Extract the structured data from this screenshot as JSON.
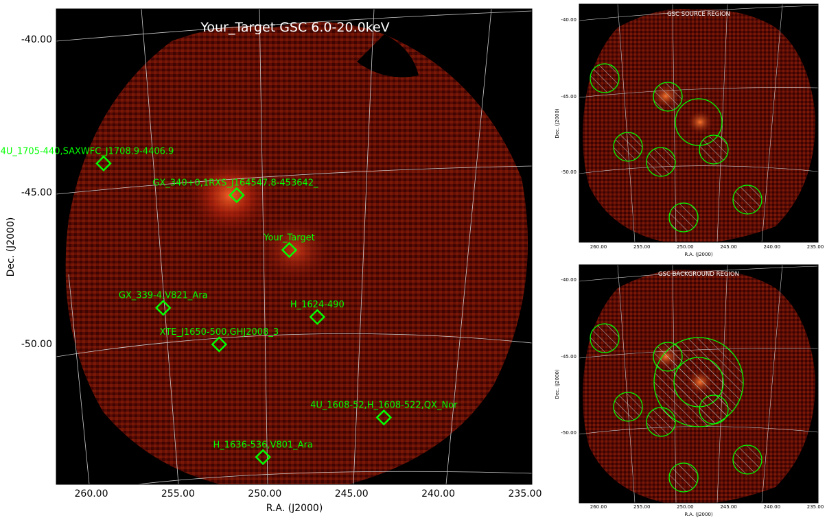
{
  "main_panel": {
    "title": "Your_Target GSC 6.0-20.0keV",
    "xlabel": "R.A. (J2000)",
    "ylabel": "Dec. (J2000)",
    "x_ticks": [
      "260.00",
      "255.00",
      "250.00",
      "245.00",
      "240.00",
      "235.00"
    ],
    "y_ticks": [
      "-40.00",
      "-45.00",
      "-50.00"
    ],
    "sources": [
      {
        "label": "4U_1705-440,SAXWFC_J1708.9-4406.9",
        "ra": 259.1,
        "dec": -44.06
      },
      {
        "label": "GX_340+0,1RXS_J164547.8-453642_",
        "ra": 251.5,
        "dec": -45.1
      },
      {
        "label": "Your_Target",
        "ra": 248.5,
        "dec": -46.9
      },
      {
        "label": "GX_339-4,V821_Ara",
        "ra": 255.7,
        "dec": -48.8
      },
      {
        "label": "H_1624-490",
        "ra": 246.9,
        "dec": -49.1
      },
      {
        "label": "XTE_J1650-500,GHJ2008_3",
        "ra": 252.5,
        "dec": -50.0
      },
      {
        "label": "4U_1608-52,H_1608-522,QX_Nor",
        "ra": 243.1,
        "dec": -52.4
      },
      {
        "label": "H_1636-536,V801_Ara",
        "ra": 250.0,
        "dec": -53.7
      }
    ]
  },
  "source_panel": {
    "title": "GSC SOURCE REGION",
    "xlabel": "R.A. (J2000)",
    "ylabel": "Dec. (J2000)",
    "x_ticks": [
      "260.00",
      "255.00",
      "250.00",
      "245.00",
      "240.00",
      "235.00"
    ],
    "y_ticks": [
      "-40.00",
      "-45.00",
      "-50.00"
    ]
  },
  "background_panel": {
    "title": "GSC BACKGROUND REGION",
    "xlabel": "R.A. (J2000)",
    "ylabel": "Dec. (J2000)",
    "x_ticks": [
      "260.00",
      "255.00",
      "250.00",
      "245.00",
      "240.00",
      "235.00"
    ],
    "y_ticks": [
      "-40.00",
      "-45.00",
      "-50.00"
    ]
  },
  "colors": {
    "marker": "#00ff00",
    "background": "#000000",
    "grid": "#cccccc",
    "text": "#ffffff"
  }
}
